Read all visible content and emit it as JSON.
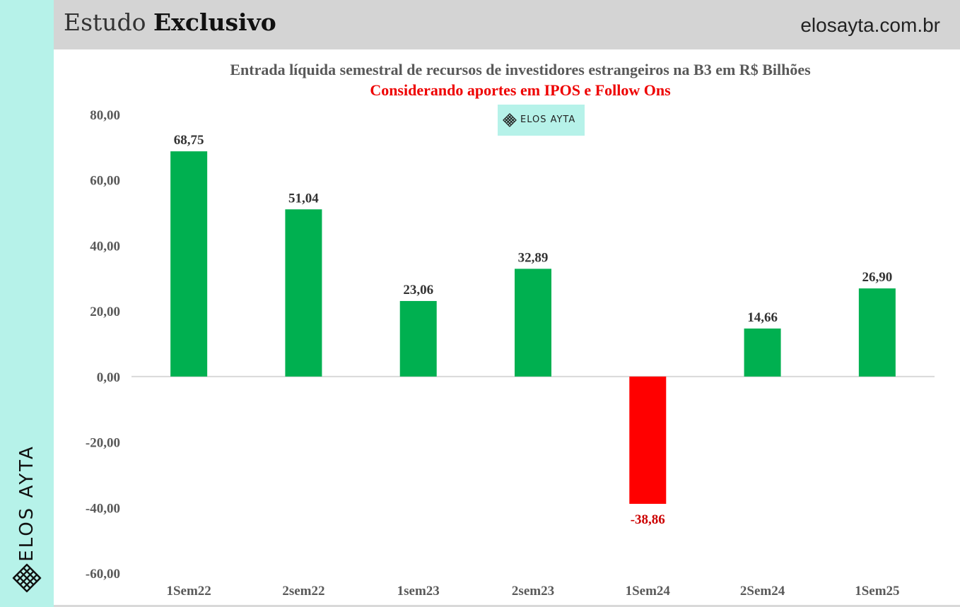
{
  "header": {
    "title_regular": "Estudo",
    "title_bold": "Exclusivo",
    "site": "elosayta.com.br"
  },
  "brand": {
    "name": "ELOS AYTA",
    "badge_text": "ELOS AYTA",
    "icon": "elos-ayta-logo-icon"
  },
  "colors": {
    "positive": "#00b050",
    "negative": "#ff0000",
    "brand_mint": "#b6f2e9",
    "header_gray": "#d4d4d4"
  },
  "chart_data": {
    "type": "bar",
    "title": "Entrada líquida semestral de recursos de investidores estrangeiros na B3 em R$ Bilhões",
    "subtitle": "Considerando aportes em IPOS e Follow Ons",
    "categories": [
      "1Sem22",
      "2sem22",
      "1sem23",
      "2sem23",
      "1Sem24",
      "2Sem24",
      "1Sem25"
    ],
    "values": [
      68.75,
      51.04,
      23.06,
      32.89,
      -38.86,
      14.66,
      26.9
    ],
    "value_labels": [
      "68,75",
      "51,04",
      "23,06",
      "32,89",
      "-38,86",
      "14,66",
      "26,90"
    ],
    "yticks": [
      80,
      60,
      40,
      20,
      0,
      -20,
      -40,
      -60
    ],
    "ytick_labels": [
      "80,00",
      "60,00",
      "40,00",
      "20,00",
      "0,00",
      "-20,00",
      "-40,00",
      "-60,00"
    ],
    "ylim": [
      -60,
      80
    ],
    "grid": false,
    "legend": "none"
  }
}
